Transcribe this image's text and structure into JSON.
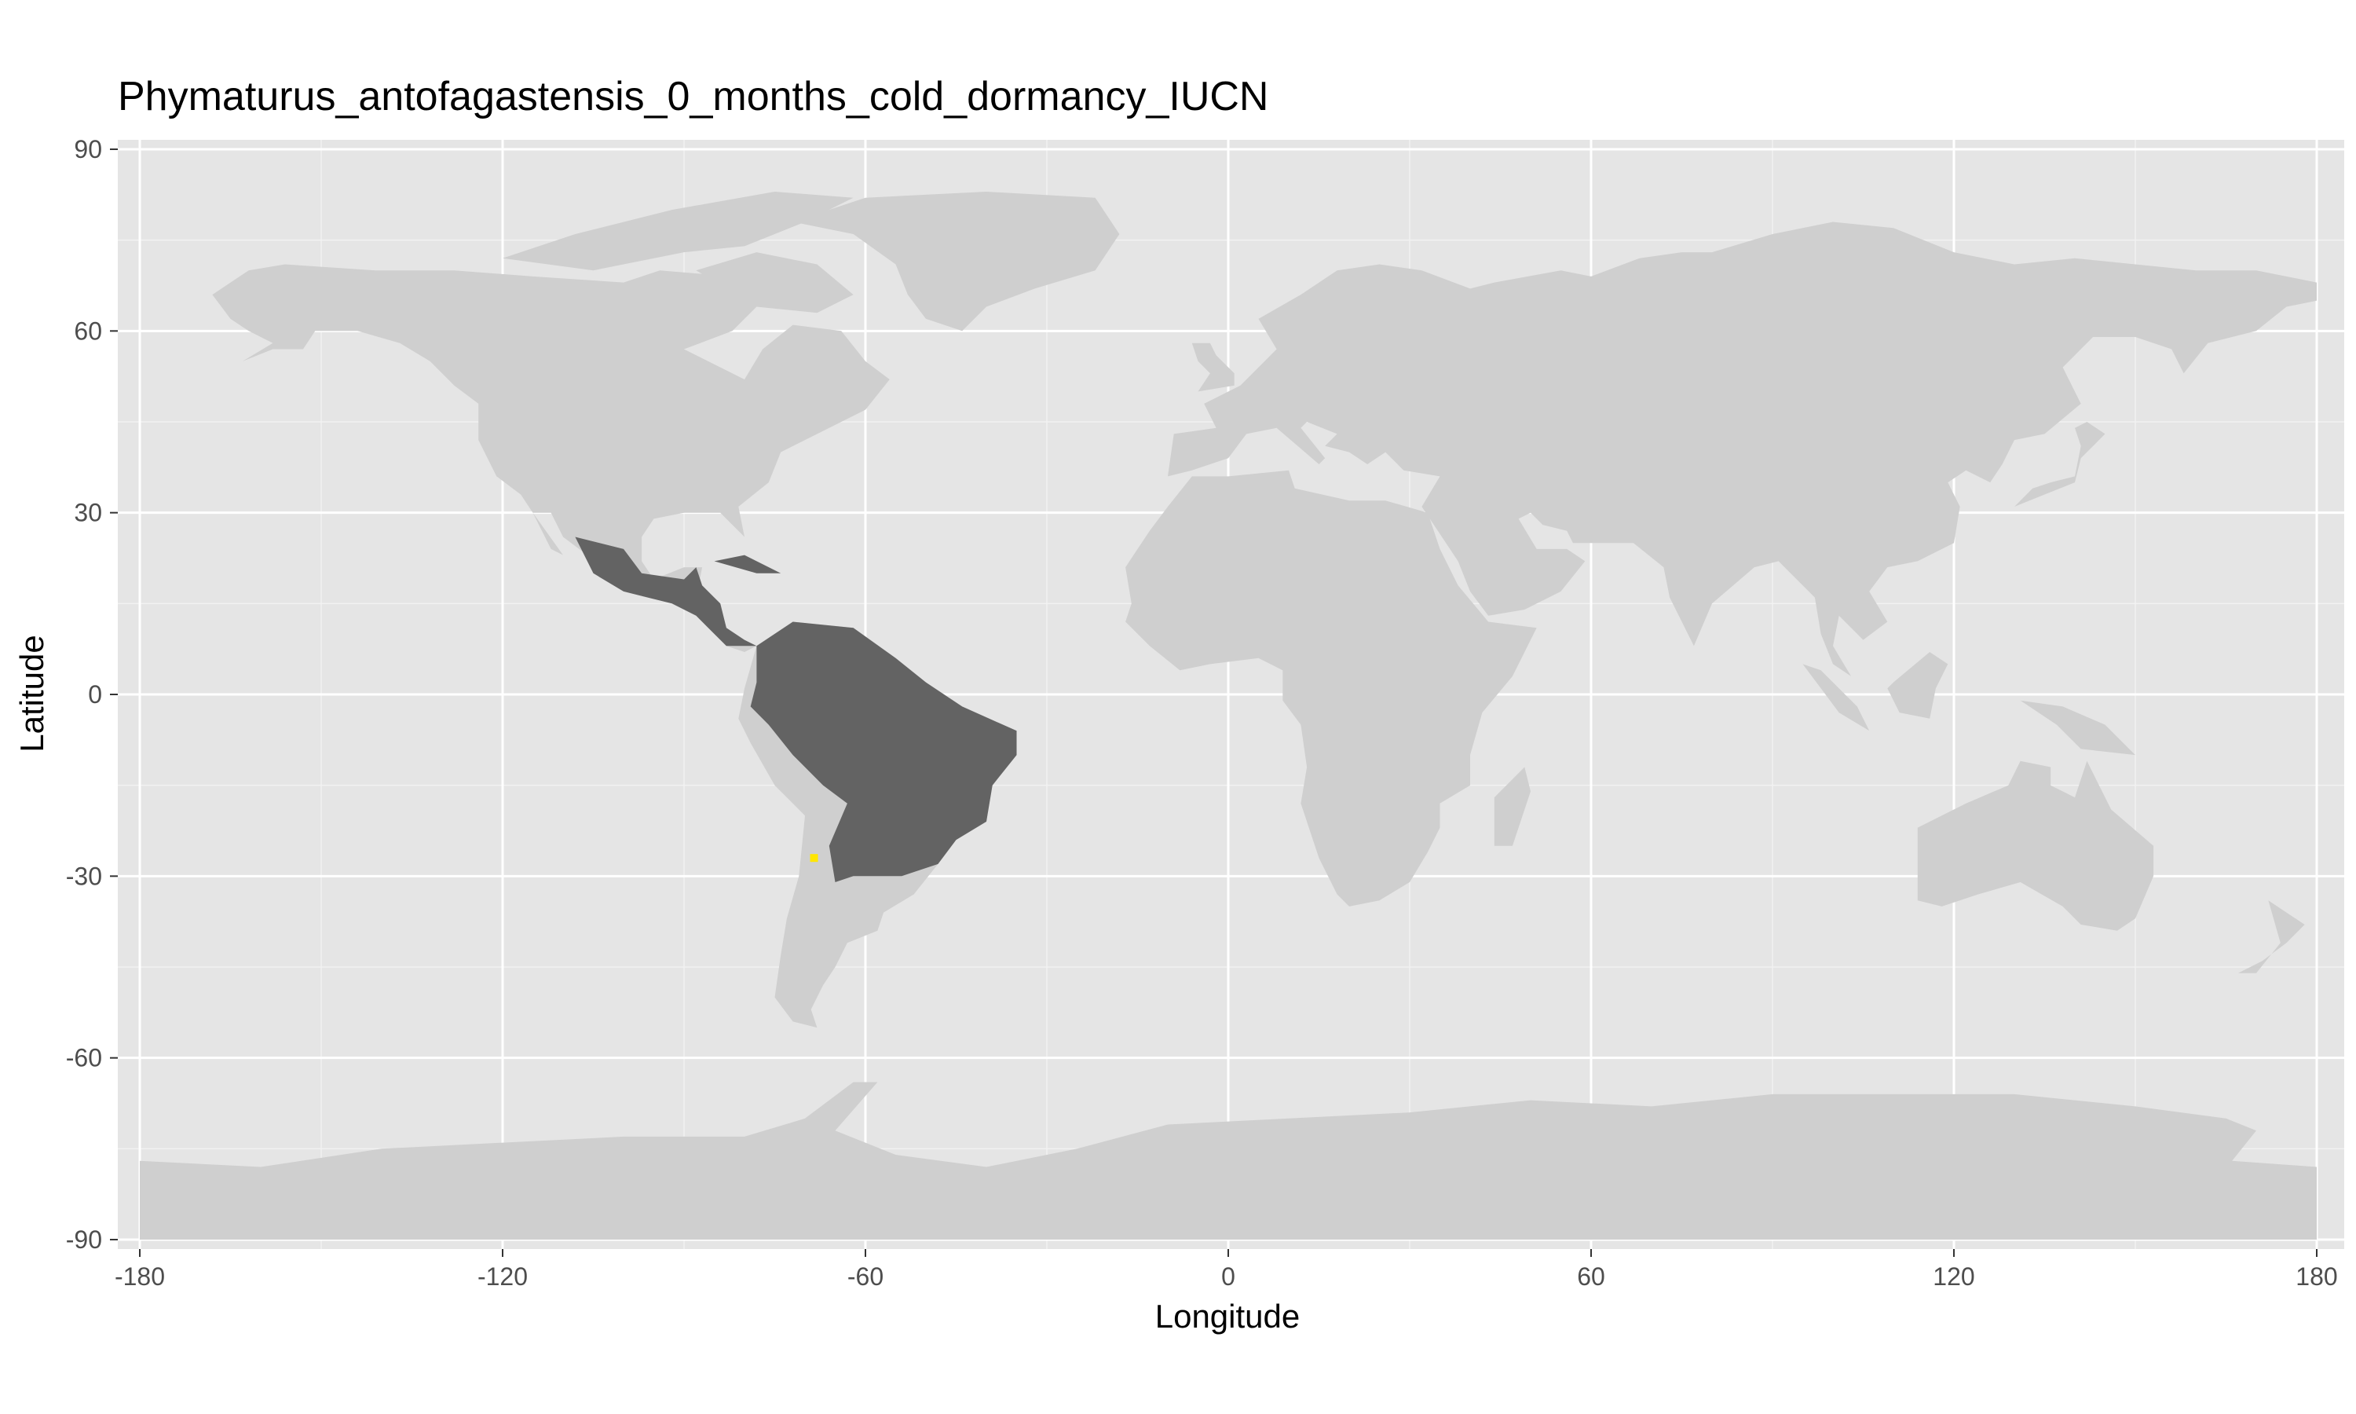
{
  "chart_data": {
    "type": "map",
    "title": "Phymaturus_antofagastensis_0_months_cold_dormancy_IUCN",
    "xlabel": "Longitude",
    "ylabel": "Latitude",
    "xlim": [
      -180,
      180
    ],
    "ylim": [
      -90,
      90
    ],
    "x_ticks": [
      -180,
      -120,
      -60,
      0,
      60,
      120,
      180
    ],
    "y_ticks": [
      -90,
      -60,
      -30,
      0,
      30,
      60,
      90
    ],
    "x_tick_labels": [
      "-180",
      "-120",
      "-60",
      "0",
      "60",
      "120",
      "180"
    ],
    "y_tick_labels": [
      "-90",
      "-60",
      "-30",
      "0",
      "30",
      "60",
      "90"
    ],
    "grid": true,
    "layers": [
      {
        "role": "land",
        "color": "#cfcfcf"
      },
      {
        "role": "suitable range",
        "color": "#636363"
      },
      {
        "role": "occurrence",
        "color": "#ffe600",
        "points": [
          {
            "lon": -68.5,
            "lat": -27
          }
        ]
      }
    ]
  },
  "colors": {
    "panel_background": "#e5e5e5",
    "grid_major": "#ffffff",
    "land": "#cfcfcf",
    "range": "#636363",
    "occurrence": "#ffe600"
  }
}
